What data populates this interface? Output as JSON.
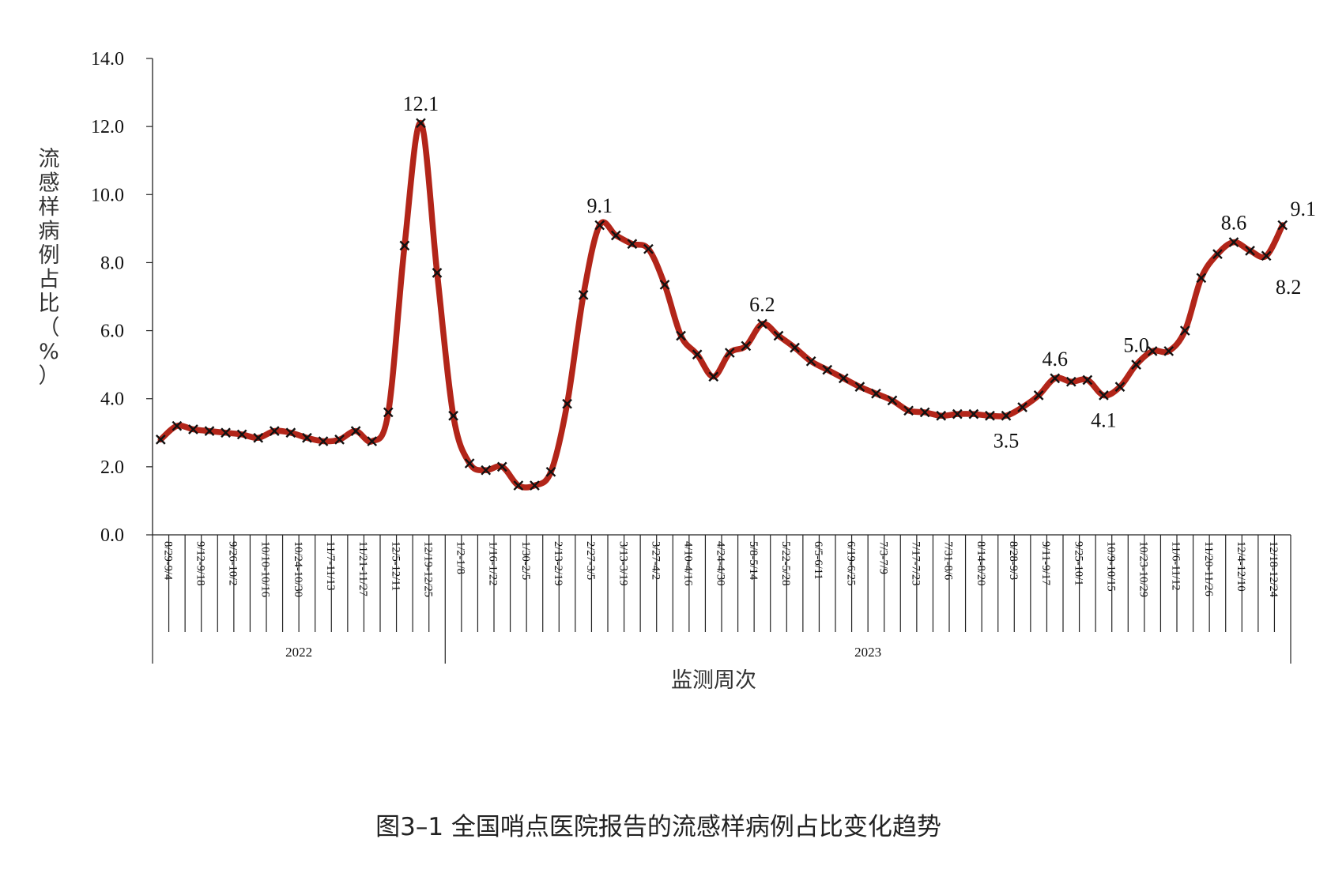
{
  "caption": "图3–1 全国哨点医院报告的流感样病例占比变化趋势",
  "chart_data": {
    "type": "line",
    "title": "",
    "ylabel": "流感样病例占比（%）",
    "xlabel": "监测周次",
    "ylim": [
      0,
      14
    ],
    "yticks": [
      "0.0",
      "2.0",
      "4.0",
      "6.0",
      "8.0",
      "10.0",
      "12.0",
      "14.0"
    ],
    "grid": false,
    "legend": "none",
    "line_color": "#b22519",
    "x": [
      "8/29-9/4",
      "9/5-9/11",
      "9/12-9/18",
      "9/19-9/25",
      "9/26-10/2",
      "10/3-10/9",
      "10/10-10/16",
      "10/17-10/23",
      "10/24-10/30",
      "10/31-11/6",
      "11/7-11/13",
      "11/14-11/20",
      "11/21-11/27",
      "11/28-12/4",
      "12/5-12/11",
      "12/12-12/18",
      "12/19-12/25",
      "12/26-1/1",
      "1/2-1/8",
      "1/9-1/15",
      "1/16-1/22",
      "1/23-1/29",
      "1/30-2/5",
      "2/6-2/12",
      "2/13-2/19",
      "2/20-2/26",
      "2/27-3/5",
      "3/6-3/12",
      "3/13-3/19",
      "3/20-3/26",
      "3/27-4/2",
      "4/3-4/9",
      "4/10-4/16",
      "4/17-4/23",
      "4/24-4/30",
      "5/1-5/7",
      "5/8-5/14",
      "5/15-5/21",
      "5/22-5/28",
      "5/29-6/4",
      "6/5-6/11",
      "6/12-6/18",
      "6/19-6/25",
      "6/26-7/2",
      "7/3-7/9",
      "7/10-7/16",
      "7/17-7/23",
      "7/24-7/30",
      "7/31-8/6",
      "8/7-8/13",
      "8/14-8/20",
      "8/21-8/27",
      "8/28-9/3",
      "9/4-9/10",
      "9/11-9/17",
      "9/18-9/24",
      "9/25-10/1",
      "10/2-10/8",
      "10/9-10/15",
      "10/16-10/22",
      "10/23-10/29",
      "10/30-11/5",
      "11/6-11/12",
      "11/13-11/19",
      "11/20-11/26",
      "11/27-12/3",
      "12/4-12/10",
      "12/11-12/17",
      "12/18-12/24",
      "12/25-12/31"
    ],
    "tick_labels": [
      "8/29-9/4",
      "9/12-9/18",
      "9/26-10/2",
      "10/10-10/16",
      "10/24-10/30",
      "11/7-11/13",
      "11/21-11/27",
      "12/5-12/11",
      "12/19-12/25",
      "1/2-1/8",
      "1/16-1/22",
      "1/30-2/5",
      "2/13-2/19",
      "2/27-3/5",
      "3/13-3/19",
      "3/27-4/2",
      "4/10-4/16",
      "4/24-4/30",
      "5/8-5/14",
      "5/22-5/28",
      "6/5-6/11",
      "6/19-6/25",
      "7/3-7/9",
      "7/17-7/23",
      "7/31-8/6",
      "8/14-8/20",
      "8/28-9/3",
      "9/11-9/17",
      "9/25-10/1",
      "10/9-10/15",
      "10/23-10/29",
      "11/6-11/12",
      "11/20-11/26",
      "12/4-12/10",
      "12/18-12/24"
    ],
    "years": [
      {
        "label": "2022",
        "from": "8/29-9/4",
        "to": "12/26-1/1"
      },
      {
        "label": "2023",
        "from": "1/2-1/8",
        "to": "12/25-12/31"
      }
    ],
    "series": [
      {
        "values": [
          2.8,
          3.2,
          3.1,
          3.05,
          3.0,
          2.95,
          2.85,
          3.05,
          3.0,
          2.85,
          2.75,
          2.8,
          3.05,
          2.75,
          3.6,
          8.5,
          12.1,
          7.7,
          3.5,
          2.1,
          1.9,
          2.0,
          1.45,
          1.45,
          1.85,
          3.85,
          7.05,
          9.1,
          8.8,
          8.55,
          8.4,
          7.35,
          5.85,
          5.3,
          4.65,
          5.35,
          5.55,
          6.2,
          5.85,
          5.5,
          5.1,
          4.85,
          4.6,
          4.35,
          4.15,
          3.95,
          3.65,
          3.6,
          3.5,
          3.55,
          3.55,
          3.5,
          3.5,
          3.75,
          4.1,
          4.6,
          4.5,
          4.55,
          4.1,
          4.35,
          5.0,
          5.4,
          5.4,
          6.0,
          7.55,
          8.25,
          8.6,
          8.35,
          8.2,
          9.1
        ]
      }
    ],
    "annotations": [
      {
        "x": "12/19-12/25",
        "y": 12.1,
        "text": "12.1",
        "pos": "above"
      },
      {
        "x": "3/6-3/12",
        "y": 9.1,
        "text": "9.1",
        "pos": "above"
      },
      {
        "x": "5/15-5/21",
        "y": 6.2,
        "text": "6.2",
        "pos": "above"
      },
      {
        "x": "8/28-9/3",
        "y": 3.5,
        "text": "3.5",
        "pos": "below"
      },
      {
        "x": "9/18-9/24",
        "y": 4.6,
        "text": "4.6",
        "pos": "above"
      },
      {
        "x": "10/9-10/15",
        "y": 4.1,
        "text": "4.1",
        "pos": "below"
      },
      {
        "x": "10/23-10/29",
        "y": 5.0,
        "text": "5.0",
        "pos": "above"
      },
      {
        "x": "12/4-12/10",
        "y": 8.6,
        "text": "8.6",
        "pos": "above"
      },
      {
        "x": "12/18-12/24",
        "y": 8.2,
        "text": "8.2",
        "pos": "below-right"
      },
      {
        "x": "12/25-12/31",
        "y": 9.1,
        "text": "9.1",
        "pos": "above-right"
      }
    ]
  }
}
